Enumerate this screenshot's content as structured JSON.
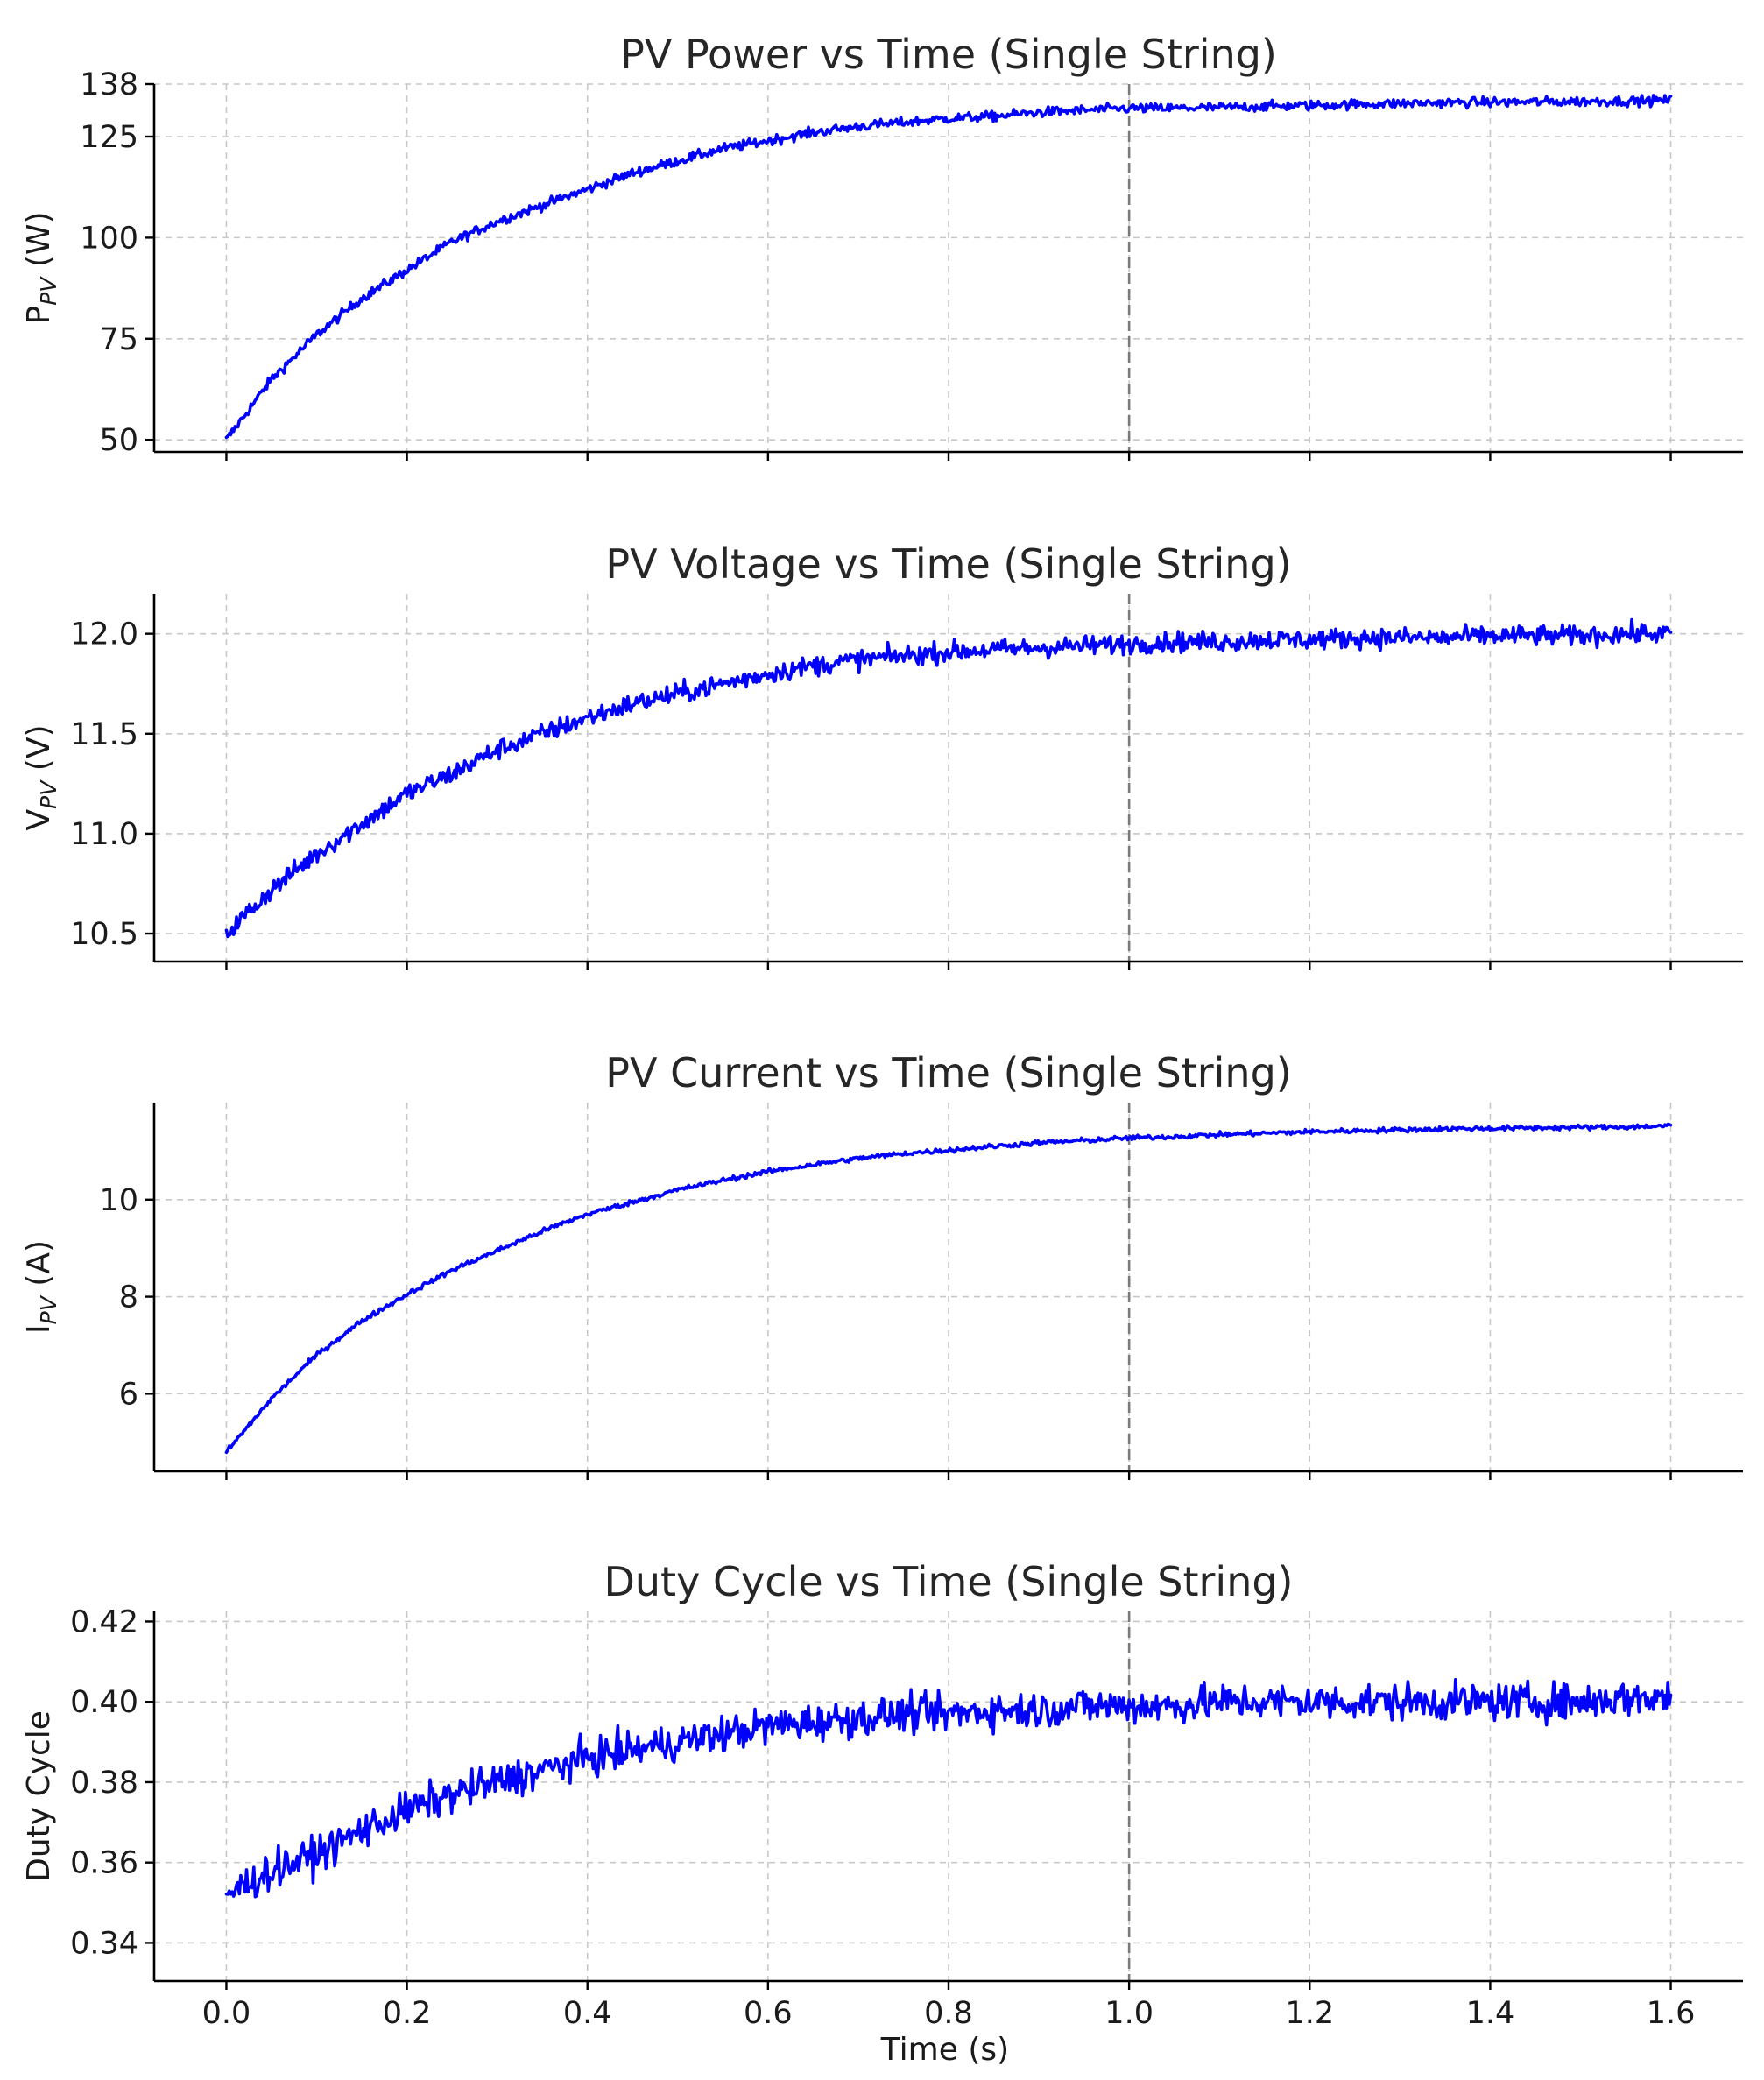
{
  "colors": {
    "line": "#0000ff",
    "marker_line": "#7a7a7a"
  },
  "shared_x": {
    "xlabel": "Time (s)",
    "xlim": [
      -0.08,
      1.68
    ],
    "xticks": [
      0.0,
      0.2,
      0.4,
      0.6,
      0.8,
      1.0,
      1.2,
      1.4,
      1.6
    ],
    "xtick_labels": [
      "0.0",
      "0.2",
      "0.4",
      "0.6",
      "0.8",
      "1.0",
      "1.2",
      "1.4",
      "1.6"
    ]
  },
  "chart_data": [
    {
      "type": "line",
      "title": "PV Power vs Time (Single String)",
      "ylabel_main": "P",
      "ylabel_sub": "PV",
      "ylabel_unit": " (W)",
      "ylim": [
        47,
        138
      ],
      "yticks": [
        50,
        75,
        100,
        125,
        138
      ],
      "ytick_labels": [
        "50",
        "75",
        "100",
        "125",
        "138"
      ],
      "vline_x": 1.0,
      "series": [
        {
          "name": "P_PV",
          "x": [
            0.0,
            0.05,
            0.1,
            0.15,
            0.2,
            0.25,
            0.3,
            0.35,
            0.4,
            0.45,
            0.5,
            0.55,
            0.6,
            0.65,
            0.7,
            0.75,
            0.8,
            0.85,
            0.9,
            0.95,
            1.0,
            1.05,
            1.1,
            1.15,
            1.2,
            1.25,
            1.3,
            1.35,
            1.4,
            1.45,
            1.5,
            1.55,
            1.6
          ],
          "y": [
            50,
            65,
            76,
            85,
            92,
            99,
            104,
            108,
            112,
            116,
            119,
            122,
            124,
            126,
            127.5,
            128.5,
            129.5,
            130,
            131,
            131.5,
            132,
            132,
            132.2,
            132.5,
            132.7,
            133,
            133.2,
            133.4,
            133.5,
            133.6,
            133.7,
            133.8,
            134
          ],
          "noise": 1.2
        }
      ]
    },
    {
      "type": "line",
      "title": "PV Voltage vs Time (Single String)",
      "ylabel_main": "V",
      "ylabel_sub": "PV",
      "ylabel_unit": " (V)",
      "ylim": [
        10.36,
        12.2
      ],
      "yticks": [
        10.5,
        11.0,
        11.5,
        12.0
      ],
      "ytick_labels": [
        "10.5",
        "11.0",
        "11.5",
        "12.0"
      ],
      "vline_x": 1.0,
      "series": [
        {
          "name": "V_PV",
          "x": [
            0.0,
            0.05,
            0.1,
            0.15,
            0.2,
            0.25,
            0.3,
            0.35,
            0.4,
            0.45,
            0.5,
            0.55,
            0.6,
            0.65,
            0.7,
            0.75,
            0.8,
            0.85,
            0.9,
            0.95,
            1.0,
            1.05,
            1.1,
            1.15,
            1.2,
            1.25,
            1.3,
            1.35,
            1.4,
            1.45,
            1.5,
            1.55,
            1.6
          ],
          "y": [
            10.5,
            10.72,
            10.9,
            11.05,
            11.2,
            11.3,
            11.42,
            11.5,
            11.58,
            11.65,
            11.7,
            11.75,
            11.8,
            11.84,
            11.87,
            11.89,
            11.91,
            11.92,
            11.93,
            11.94,
            11.95,
            11.96,
            11.96,
            11.97,
            11.97,
            11.98,
            11.98,
            11.98,
            11.99,
            11.99,
            11.99,
            12.0,
            12.0
          ],
          "noise": 0.05
        }
      ]
    },
    {
      "type": "line",
      "title": "PV Current vs Time (Single String)",
      "ylabel_main": "I",
      "ylabel_sub": "PV",
      "ylabel_unit": " (A)",
      "ylim": [
        4.4,
        12.0
      ],
      "yticks": [
        6,
        8,
        10
      ],
      "ytick_labels": [
        "6",
        "8",
        "10"
      ],
      "vline_x": 1.0,
      "series": [
        {
          "name": "I_PV",
          "x": [
            0.0,
            0.05,
            0.1,
            0.15,
            0.2,
            0.25,
            0.3,
            0.35,
            0.4,
            0.45,
            0.5,
            0.55,
            0.6,
            0.65,
            0.7,
            0.75,
            0.8,
            0.85,
            0.9,
            0.95,
            1.0,
            1.05,
            1.1,
            1.15,
            1.2,
            1.25,
            1.3,
            1.35,
            1.4,
            1.45,
            1.5,
            1.55,
            1.6
          ],
          "y": [
            4.8,
            5.9,
            6.8,
            7.5,
            8.05,
            8.55,
            8.95,
            9.35,
            9.7,
            9.95,
            10.2,
            10.4,
            10.58,
            10.72,
            10.85,
            10.95,
            11.02,
            11.1,
            11.17,
            11.22,
            11.27,
            11.3,
            11.34,
            11.37,
            11.4,
            11.42,
            11.44,
            11.46,
            11.47,
            11.48,
            11.49,
            11.5,
            11.52
          ],
          "noise": 0.05
        }
      ]
    },
    {
      "type": "line",
      "title": "Duty Cycle vs Time (Single String)",
      "ylabel_main": "Duty Cycle",
      "ylabel_sub": "",
      "ylabel_unit": "",
      "ylim": [
        0.3305,
        0.4225
      ],
      "yticks": [
        0.34,
        0.36,
        0.38,
        0.4,
        0.42
      ],
      "ytick_labels": [
        "0.34",
        "0.36",
        "0.38",
        "0.40",
        "0.42"
      ],
      "vline_x": 1.0,
      "series": [
        {
          "name": "Duty Cycle",
          "x": [
            0.0,
            0.05,
            0.1,
            0.15,
            0.2,
            0.25,
            0.3,
            0.35,
            0.4,
            0.45,
            0.5,
            0.55,
            0.6,
            0.65,
            0.7,
            0.75,
            0.8,
            0.85,
            0.9,
            0.95,
            1.0,
            1.05,
            1.1,
            1.15,
            1.2,
            1.25,
            1.3,
            1.35,
            1.4,
            1.45,
            1.5,
            1.55,
            1.6
          ],
          "y": [
            0.352,
            0.358,
            0.362,
            0.368,
            0.373,
            0.377,
            0.38,
            0.383,
            0.386,
            0.388,
            0.39,
            0.392,
            0.394,
            0.395,
            0.396,
            0.397,
            0.397,
            0.398,
            0.398,
            0.399,
            0.399,
            0.399,
            0.4,
            0.4,
            0.4,
            0.4,
            0.4,
            0.4,
            0.4,
            0.4,
            0.4,
            0.401,
            0.401
          ],
          "noise": 0.0045
        }
      ]
    }
  ]
}
